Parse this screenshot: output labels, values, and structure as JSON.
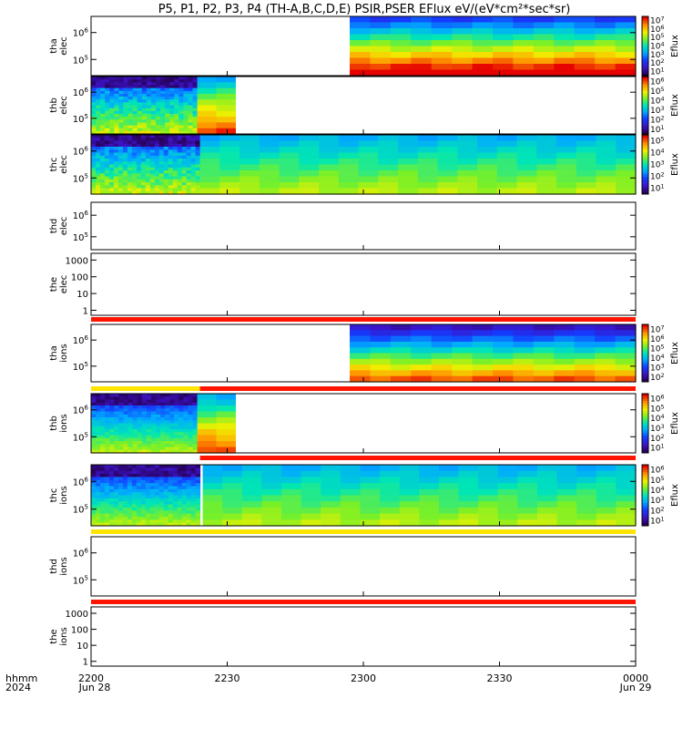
{
  "title": "P5, P1, P2, P3, P4 (TH-A,B,C,D,E) PSIR,PSER EFlux eV/(eV*cm²*sec*sr)",
  "chart_data": {
    "type": "heatmap",
    "x_axis": {
      "ticks": [
        "2200",
        "2230",
        "2300",
        "2330",
        "0000"
      ],
      "tick_hours": [
        22.0,
        22.5,
        23.0,
        23.5,
        24.0
      ],
      "range": [
        22.0,
        24.0
      ],
      "left_label": "hhmm",
      "left_sublabel": "2024",
      "start_date": "Jun 28",
      "end_date": "Jun 29"
    },
    "colorbar_label": "Eflux",
    "panels": [
      {
        "id": "tha-elec",
        "label1": "tha",
        "label2": "elec",
        "yticks": [
          {
            "text": "10^5",
            "logv": 5
          },
          {
            "text": "10^6",
            "logv": 6
          }
        ],
        "log_range": [
          4.4,
          6.6
        ],
        "cbar": [
          "10^1",
          "10^2",
          "10^3",
          "10^4",
          "10^5",
          "10^6",
          "10^7"
        ],
        "cbar_log": [
          0.5,
          7.5
        ],
        "blocks": [
          {
            "t0": 22.95,
            "t1": 24.0,
            "palette": "ramp",
            "kind": "strong"
          }
        ],
        "bar": null
      },
      {
        "id": "thb-elec",
        "label1": "thb",
        "label2": "elec",
        "yticks": [
          {
            "text": "10^5",
            "logv": 5
          },
          {
            "text": "10^6",
            "logv": 6
          }
        ],
        "log_range": [
          4.4,
          6.6
        ],
        "cbar": [
          "10^1",
          "10^2",
          "10^3",
          "10^4",
          "10^5",
          "10^6"
        ],
        "cbar_log": [
          0.5,
          6.5
        ],
        "blocks": [
          {
            "t0": 22.0,
            "t1": 22.39,
            "palette": "noise"
          },
          {
            "t0": 22.39,
            "t1": 22.53,
            "palette": "ramp",
            "kind": "mid"
          }
        ],
        "bar": null
      },
      {
        "id": "thc-elec",
        "label1": "thc",
        "label2": "elec",
        "yticks": [
          {
            "text": "10^5",
            "logv": 5
          },
          {
            "text": "10^6",
            "logv": 6
          }
        ],
        "log_range": [
          4.4,
          6.6
        ],
        "cbar": [
          "10^1",
          "10^2",
          "10^3",
          "10^4",
          "10^5"
        ],
        "cbar_log": [
          0.5,
          5.5
        ],
        "blocks": [
          {
            "t0": 22.0,
            "t1": 22.4,
            "palette": "noise"
          },
          {
            "t0": 22.4,
            "t1": 24.0,
            "palette": "ramp",
            "kind": "soft"
          }
        ],
        "bar": null
      },
      {
        "id": "thd-elec",
        "label1": "thd",
        "label2": "elec",
        "yticks": [
          {
            "text": "10^5",
            "logv": 5
          },
          {
            "text": "10^6",
            "logv": 6
          }
        ],
        "log_range": [
          4.4,
          6.6
        ],
        "cbar": [],
        "blocks": [],
        "bar": null
      },
      {
        "id": "the-elec",
        "label1": "the",
        "label2": "elec",
        "yticks": [
          {
            "text": "1",
            "logv": 0
          },
          {
            "text": "10",
            "logv": 1
          },
          {
            "text": "100",
            "logv": 2
          },
          {
            "text": "1000",
            "logv": 3
          }
        ],
        "log_range": [
          -0.3,
          3.4
        ],
        "cbar": [],
        "blocks": [],
        "bar": {
          "color": "#ff1400",
          "t0": 22.0,
          "t1": 24.0
        }
      },
      {
        "id": "tha-ions",
        "label1": "tha",
        "label2": "ions",
        "yticks": [
          {
            "text": "10^5",
            "logv": 5
          },
          {
            "text": "10^6",
            "logv": 6
          }
        ],
        "log_range": [
          4.4,
          6.6
        ],
        "cbar": [
          "10^2",
          "10^3",
          "10^4",
          "10^5",
          "10^6",
          "10^7"
        ],
        "cbar_log": [
          1.5,
          7.5
        ],
        "blocks": [
          {
            "t0": 22.95,
            "t1": 24.0,
            "palette": "ramp",
            "kind": "ion"
          }
        ],
        "bar": {
          "segments": [
            {
              "color": "#ffe400",
              "t0": 22.0,
              "t1": 22.4
            },
            {
              "color": "#ff1400",
              "t0": 22.4,
              "t1": 24.0
            }
          ]
        }
      },
      {
        "id": "thb-ions",
        "label1": "thb",
        "label2": "ions",
        "yticks": [
          {
            "text": "10^5",
            "logv": 5
          },
          {
            "text": "10^6",
            "logv": 6
          }
        ],
        "log_range": [
          4.4,
          6.6
        ],
        "cbar": [
          "10^1",
          "10^2",
          "10^3",
          "10^4",
          "10^5",
          "10^6"
        ],
        "cbar_log": [
          0.5,
          6.5
        ],
        "blocks": [
          {
            "t0": 22.0,
            "t1": 22.39,
            "palette": "noiseion"
          },
          {
            "t0": 22.39,
            "t1": 22.53,
            "palette": "ramp",
            "kind": "mid"
          }
        ],
        "bar": {
          "segments": [
            {
              "color": "#ff1400",
              "t0": 22.4,
              "t1": 24.0
            }
          ]
        }
      },
      {
        "id": "thc-ions",
        "label1": "thc",
        "label2": "ions",
        "yticks": [
          {
            "text": "10^5",
            "logv": 5
          },
          {
            "text": "10^6",
            "logv": 6
          }
        ],
        "log_range": [
          4.4,
          6.6
        ],
        "cbar": [
          "10^1",
          "10^2",
          "10^3",
          "10^4",
          "10^5",
          "10^6"
        ],
        "cbar_log": [
          0.5,
          6.5
        ],
        "blocks": [
          {
            "t0": 22.0,
            "t1": 22.4,
            "palette": "noiseion"
          },
          {
            "t0": 22.41,
            "t1": 24.0,
            "palette": "ramp",
            "kind": "soft"
          }
        ],
        "bar": {
          "segments": [
            {
              "color": "#ffe400",
              "t0": 22.0,
              "t1": 24.0
            }
          ]
        }
      },
      {
        "id": "thd-ions",
        "label1": "thd",
        "label2": "ions",
        "yticks": [
          {
            "text": "10^5",
            "logv": 5
          },
          {
            "text": "10^6",
            "logv": 6
          }
        ],
        "log_range": [
          4.4,
          6.6
        ],
        "cbar": [],
        "blocks": [],
        "bar": {
          "segments": [
            {
              "color": "#ff1400",
              "t0": 22.0,
              "t1": 24.0
            }
          ]
        }
      },
      {
        "id": "the-ions",
        "label1": "the",
        "label2": "ions",
        "yticks": [
          {
            "text": "1",
            "logv": 0
          },
          {
            "text": "10",
            "logv": 1
          },
          {
            "text": "100",
            "logv": 2
          },
          {
            "text": "1000",
            "logv": 3
          }
        ],
        "log_range": [
          -0.3,
          3.4
        ],
        "cbar": [],
        "blocks": [],
        "bar": null
      }
    ]
  }
}
